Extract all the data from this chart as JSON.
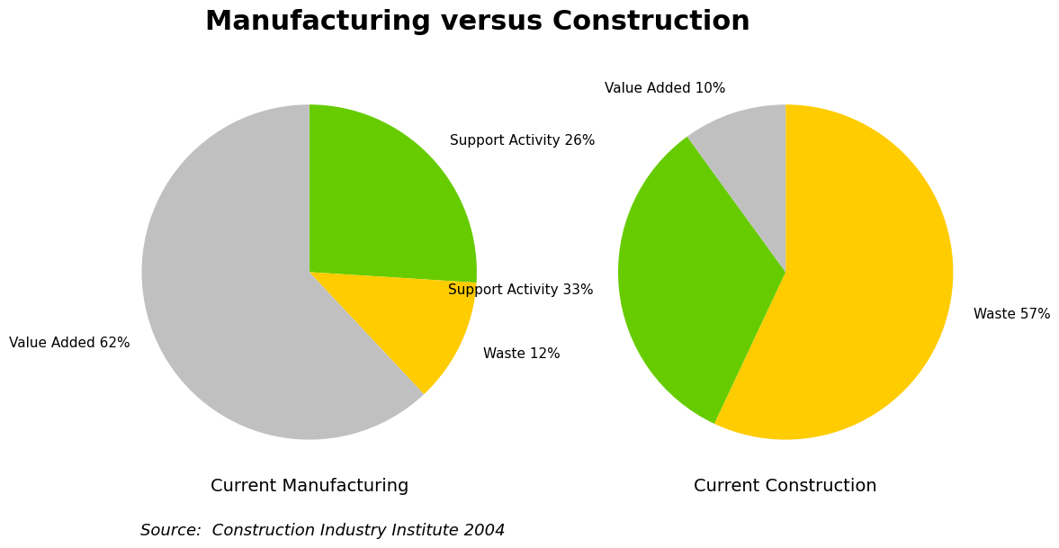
{
  "title": "Manufacturing versus Construction",
  "title_fontsize": 22,
  "title_fontweight": "bold",
  "background_color": "#ffffff",
  "pie1": {
    "label": "Current Manufacturing",
    "sizes": [
      26,
      12,
      62
    ],
    "labels": [
      "Support Activity 26%",
      "Waste 12%",
      "Value Added 62%"
    ],
    "colors": [
      "#66cc00",
      "#ffcc00",
      "#c0c0c0"
    ],
    "startangle": 90,
    "counterclock": false,
    "label_fontsize": 11,
    "labeldistance": 1.15
  },
  "pie2": {
    "label": "Current Construction",
    "sizes": [
      57,
      33,
      10
    ],
    "labels": [
      "Waste 57%",
      "Support Activity 33%",
      "Value Added 10%"
    ],
    "colors": [
      "#ffcc00",
      "#66cc00",
      "#c0c0c0"
    ],
    "startangle": 90,
    "counterclock": false,
    "label_fontsize": 11,
    "labeldistance": 1.15
  },
  "source_text": "Source:  Construction Industry Institute 2004",
  "source_fontsize": 13,
  "source_style": "italic",
  "subtitle_label1": "Current Manufacturing",
  "subtitle_label2": "Current Construction",
  "subtitle_fontsize": 14
}
